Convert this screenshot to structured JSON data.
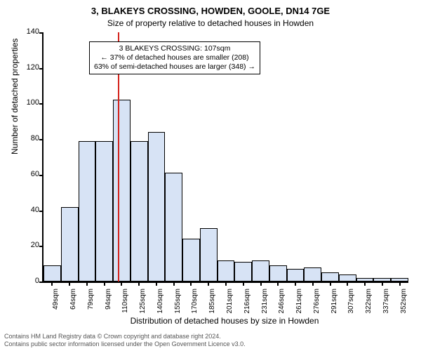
{
  "title_line1": "3, BLAKEYS CROSSING, HOWDEN, GOOLE, DN14 7GE",
  "title_line2": "Size of property relative to detached houses in Howden",
  "ylabel": "Number of detached properties",
  "xaxis_title": "Distribution of detached houses by size in Howden",
  "chart": {
    "type": "histogram",
    "background_color": "#ffffff",
    "bar_fill": "#d7e3f5",
    "bar_stroke": "#000000",
    "reference_line_color": "#d4231c",
    "reference_line_x_value": 107,
    "ylim": [
      0,
      140
    ],
    "ytick_step": 20,
    "yticks": [
      0,
      20,
      40,
      60,
      80,
      100,
      120,
      140
    ],
    "x_start": 42,
    "x_bin_width": 15,
    "x_categories": [
      "49sqm",
      "64sqm",
      "79sqm",
      "94sqm",
      "110sqm",
      "125sqm",
      "140sqm",
      "155sqm",
      "170sqm",
      "185sqm",
      "201sqm",
      "216sqm",
      "231sqm",
      "246sqm",
      "261sqm",
      "276sqm",
      "291sqm",
      "307sqm",
      "322sqm",
      "337sqm",
      "352sqm"
    ],
    "values": [
      9,
      42,
      79,
      79,
      102,
      79,
      84,
      61,
      24,
      30,
      12,
      11,
      12,
      9,
      7,
      8,
      5,
      4,
      2,
      2,
      2
    ],
    "title_fontsize": 13,
    "subtitle_fontsize": 12,
    "axis_label_fontsize": 12,
    "tick_fontsize": 11,
    "xtick_fontsize": 10
  },
  "annotation": {
    "line1": "3 BLAKEYS CROSSING: 107sqm",
    "line2": "← 37% of detached houses are smaller (208)",
    "line3": "63% of semi-detached houses are larger (348) →"
  },
  "footer": {
    "line1": "Contains HM Land Registry data © Crown copyright and database right 2024.",
    "line2": "Contains public sector information licensed under the Open Government Licence v3.0."
  }
}
